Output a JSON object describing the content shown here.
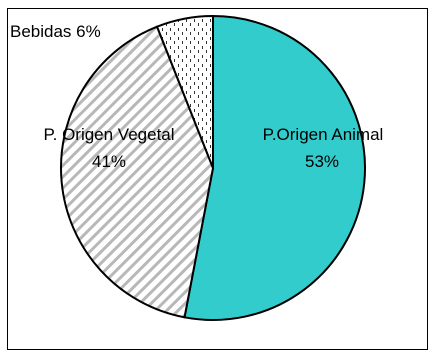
{
  "chart_data": {
    "type": "pie",
    "slices": [
      {
        "name": "P.Origen Animal",
        "value": 53,
        "label": "53%",
        "color": "#33cccc",
        "pattern": "solid"
      },
      {
        "name": "P. Origen Vegetal",
        "value": 41,
        "label": "41%",
        "color": "#ffffff",
        "pattern": "diagonal-stripes"
      },
      {
        "name": "Bebidas",
        "value": 6,
        "label": "Bebidas 6%",
        "color": "#ffffff",
        "pattern": "dotted-dashes"
      }
    ],
    "legend": "none",
    "data_labels": "category-and-percent"
  }
}
